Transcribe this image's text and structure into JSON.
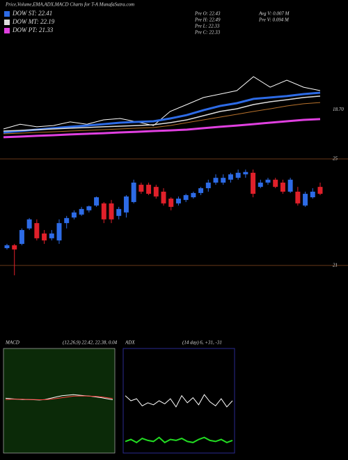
{
  "header": {
    "title": "Price,Volume,EMA,ADX,MACD Charts for T-A MunafaSutra.com",
    "stats": [
      "Pre  O: 22.43",
      "Pre  H: 22.49",
      "Pre  L: 22.33",
      "Pre  C: 22.33",
      "Avg V: 0.007 M",
      "Pre  V: 0.094  M"
    ]
  },
  "chart_data": [
    {
      "type": "line",
      "ylim": [
        15,
        24
      ],
      "yticks": [
        {
          "value": 18.7,
          "label": "18.70"
        }
      ],
      "series": [
        {
          "color": "#ffffff",
          "width": 1,
          "values": [
            17.18,
            17.55,
            17.35,
            17.45,
            17.73,
            17.55,
            17.89,
            18.0,
            17.73,
            17.45,
            18.55,
            19.09,
            19.64,
            19.91,
            20.18,
            21.27,
            20.45,
            21.0,
            20.45,
            20.18
          ]
        },
        {
          "color": "#b8722c",
          "width": 1,
          "values": [
            16.8,
            16.85,
            16.91,
            16.96,
            17.02,
            17.07,
            17.13,
            17.18,
            17.24,
            17.29,
            17.45,
            17.67,
            17.89,
            18.11,
            18.33,
            18.55,
            18.76,
            18.98,
            19.15,
            19.25
          ]
        },
        {
          "name": "DOW ST: 22.41",
          "color": "#2d6be6",
          "width": 3,
          "values": [
            16.91,
            17.02,
            17.13,
            17.24,
            17.35,
            17.45,
            17.56,
            17.67,
            17.73,
            17.78,
            18.0,
            18.27,
            18.65,
            18.98,
            19.2,
            19.53,
            19.64,
            19.75,
            19.91,
            20.02
          ]
        },
        {
          "name": "DOW MT: 22.19",
          "color": "#dddddd",
          "width": 1.5,
          "values": [
            17.02,
            17.07,
            17.13,
            17.18,
            17.24,
            17.29,
            17.35,
            17.4,
            17.45,
            17.51,
            17.67,
            17.89,
            18.22,
            18.55,
            18.76,
            19.09,
            19.31,
            19.47,
            19.64,
            19.75
          ]
        },
        {
          "name": "DOW PT: 21.33",
          "color": "#e040e0",
          "width": 3,
          "values": [
            16.53,
            16.58,
            16.64,
            16.69,
            16.75,
            16.8,
            16.85,
            16.91,
            16.96,
            17.02,
            17.07,
            17.13,
            17.24,
            17.35,
            17.45,
            17.56,
            17.67,
            17.78,
            17.89,
            17.95
          ]
        }
      ]
    },
    {
      "type": "candlestick",
      "ylim": [
        20.5,
        25
      ],
      "yticks": [
        21,
        25
      ],
      "up_color": "#2d6be6",
      "down_color": "#e0202a",
      "open": [
        21.65,
        21.76,
        21.81,
        22.39,
        22.59,
        22.2,
        22.02,
        21.94,
        22.59,
        22.8,
        22.91,
        23.07,
        23.25,
        23.33,
        23.33,
        22.86,
        22.99,
        23.38,
        24.03,
        24.03,
        23.95,
        23.77,
        23.51,
        23.33,
        23.46,
        23.56,
        23.72,
        23.9,
        24.11,
        24.11,
        24.22,
        24.29,
        24.42,
        24.48,
        23.95,
        24.11,
        24.22,
        24.11,
        23.77,
        23.77,
        23.25,
        23.56,
        23.95
      ],
      "high": [
        21.81,
        21.81,
        22.39,
        22.78,
        22.73,
        22.33,
        22.33,
        22.73,
        22.86,
        23.07,
        23.2,
        23.25,
        23.59,
        23.38,
        23.46,
        23.2,
        23.64,
        24.22,
        24.11,
        24.11,
        24.03,
        23.9,
        23.56,
        23.59,
        23.69,
        23.77,
        23.95,
        24.22,
        24.42,
        24.42,
        24.48,
        24.6,
        24.6,
        24.6,
        24.22,
        24.29,
        24.29,
        24.22,
        24.29,
        23.95,
        23.77,
        23.9,
        24.11
      ],
      "low": [
        21.6,
        20.63,
        21.76,
        22.33,
        21.94,
        21.81,
        21.94,
        21.81,
        22.39,
        22.73,
        22.86,
        22.99,
        23.2,
        22.59,
        22.59,
        22.73,
        22.8,
        23.33,
        23.69,
        23.64,
        23.51,
        23.25,
        23.07,
        23.25,
        23.38,
        23.51,
        23.64,
        23.77,
        24.03,
        24.03,
        24.11,
        24.22,
        24.29,
        23.56,
        23.9,
        24.03,
        23.9,
        23.69,
        23.72,
        23.25,
        23.2,
        23.51,
        23.64
      ],
      "close": [
        21.76,
        21.6,
        22.33,
        22.73,
        22.02,
        21.94,
        22.2,
        22.59,
        22.78,
        22.99,
        23.12,
        23.22,
        23.56,
        22.73,
        22.73,
        23.12,
        23.59,
        24.11,
        23.77,
        23.69,
        23.59,
        23.33,
        23.2,
        23.51,
        23.64,
        23.72,
        23.9,
        24.11,
        24.29,
        24.29,
        24.42,
        24.48,
        24.51,
        23.69,
        24.11,
        24.22,
        23.95,
        23.77,
        24.22,
        23.33,
        23.69,
        23.77,
        23.69
      ]
    },
    {
      "type": "line",
      "title": "MACD",
      "subtitle": "(12,26,9) 22.42, 22.38, 0.04",
      "ylim": [
        -2,
        2
      ],
      "series": [
        {
          "color": "#ffffff",
          "width": 1,
          "values": [
            0.1,
            0.08,
            0.06,
            0.05,
            0.05,
            0.04,
            0.03,
            0.05,
            0.1,
            0.15,
            0.2,
            0.22,
            0.24,
            0.22,
            0.2,
            0.18,
            0.15,
            0.12,
            0.08,
            0.04
          ]
        },
        {
          "color": "#ff4040",
          "width": 1,
          "values": [
            0.05,
            0.06,
            0.06,
            0.06,
            0.05,
            0.05,
            0.04,
            0.04,
            0.06,
            0.09,
            0.12,
            0.15,
            0.18,
            0.19,
            0.19,
            0.18,
            0.17,
            0.15,
            0.12,
            0.09
          ]
        }
      ]
    },
    {
      "type": "line",
      "title": "ADX",
      "subtitle": "(14  day) 6, +31, -31",
      "ylim": [
        0,
        100
      ],
      "series": [
        {
          "color": "#ffffff",
          "width": 1,
          "values": [
            55,
            50,
            52,
            45,
            48,
            46,
            50,
            47,
            52,
            44,
            55,
            48,
            53,
            46,
            56,
            49,
            45,
            52,
            44,
            50
          ]
        },
        {
          "color": "#22dd22",
          "width": 2,
          "values": [
            10,
            12,
            9,
            13,
            11,
            10,
            14,
            9,
            12,
            11,
            13,
            10,
            9,
            12,
            14,
            11,
            10,
            12,
            9,
            11
          ]
        }
      ]
    }
  ]
}
